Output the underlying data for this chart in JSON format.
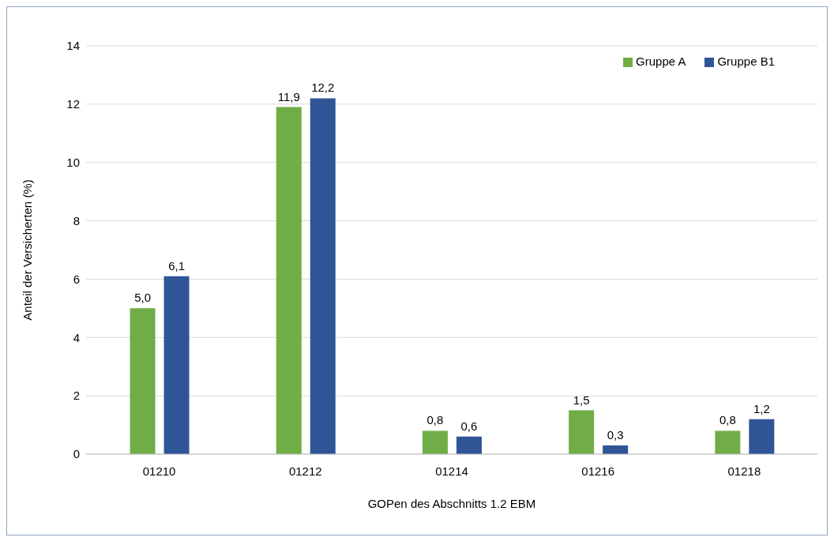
{
  "chart_data": {
    "type": "bar",
    "xlabel": "GOPen des Abschnitts 1.2 EBM",
    "ylabel": "Anteil der Versicherten (%)",
    "categories": [
      "01210",
      "01212",
      "01214",
      "01216",
      "01218"
    ],
    "series": [
      {
        "name": "Gruppe A",
        "color": "#70ad47",
        "values": [
          5.0,
          11.9,
          0.8,
          1.5,
          0.8
        ],
        "value_labels": [
          "5,0",
          "11,9",
          "0,8",
          "1,5",
          "0,8"
        ]
      },
      {
        "name": "Gruppe B1",
        "color": "#2f5597",
        "values": [
          6.1,
          12.2,
          0.6,
          0.3,
          1.2
        ],
        "value_labels": [
          "6,1",
          "12,2",
          "0,6",
          "0,3",
          "1,2"
        ]
      }
    ],
    "ylim": [
      0,
      14
    ],
    "yticks": [
      0,
      2,
      4,
      6,
      8,
      10,
      12,
      14
    ],
    "grid": "y",
    "legend": "top right"
  }
}
